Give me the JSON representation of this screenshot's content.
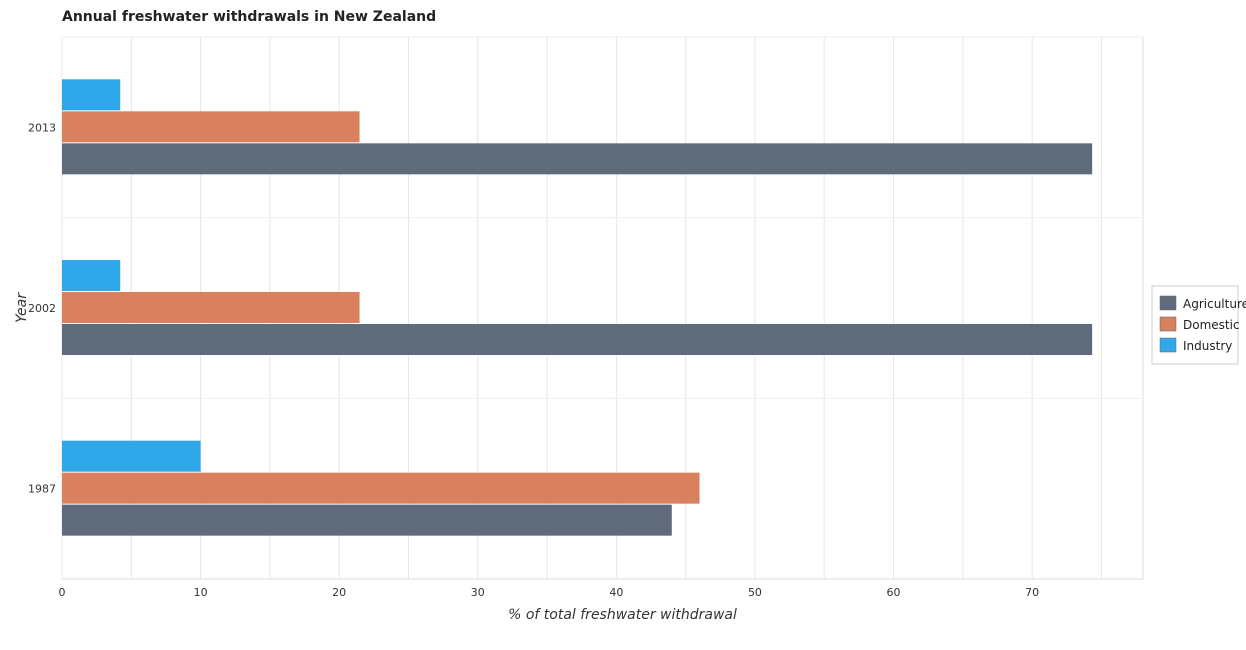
{
  "title": "Annual freshwater withdrawals in New Zealand",
  "chart_data": {
    "type": "bar",
    "orientation": "horizontal",
    "title": "Annual freshwater withdrawals in New Zealand",
    "xlabel": "% of total freshwater withdrawal",
    "ylabel": "Year",
    "categories": [
      "1987",
      "2002",
      "2013"
    ],
    "series": [
      {
        "name": "Agriculture",
        "color": "#5f6b7a",
        "values": [
          44.0,
          74.33,
          74.33
        ]
      },
      {
        "name": "Domestic",
        "color": "#d9805f",
        "values": [
          46.0,
          21.47,
          21.47
        ]
      },
      {
        "name": "Industry",
        "color": "#2fa7e8",
        "values": [
          10.0,
          4.2,
          4.2
        ]
      }
    ],
    "xlim": [
      0,
      78
    ],
    "xticks": [
      0,
      10,
      20,
      30,
      40,
      50,
      60,
      70
    ],
    "grid": true,
    "legend_position": "right"
  }
}
